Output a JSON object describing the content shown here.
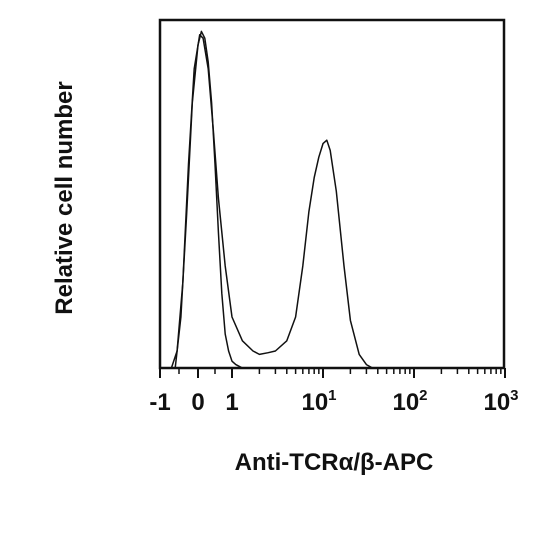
{
  "chart_data": {
    "type": "line",
    "title": "",
    "xlabel": "Anti-TCRα/β-APC",
    "ylabel": "Relative cell number",
    "x_scale": "biexponential (linear near 0, log above 1)",
    "xlim": [
      -1,
      1000
    ],
    "ylim": [
      0,
      1
    ],
    "grid": false,
    "legend": "none",
    "x_ticks": [
      {
        "value": -1,
        "base": "-1",
        "exp": ""
      },
      {
        "value": 0,
        "base": "0",
        "exp": ""
      },
      {
        "value": 1,
        "base": "1",
        "exp": ""
      },
      {
        "value": 10,
        "base": "10",
        "exp": "1"
      },
      {
        "value": 100,
        "base": "10",
        "exp": "2"
      },
      {
        "value": 1000,
        "base": "10",
        "exp": "3"
      }
    ],
    "series": [
      {
        "color": "#111111",
        "x": [
          -0.6,
          -0.45,
          -0.3,
          -0.15,
          0,
          0.1,
          0.2,
          0.3,
          0.4,
          0.5,
          0.6,
          0.7,
          0.8,
          0.9,
          1.0,
          1.1,
          1.3,
          1.6
        ],
        "y": [
          0.0,
          0.15,
          0.45,
          0.78,
          0.95,
          0.99,
          0.97,
          0.9,
          0.78,
          0.6,
          0.4,
          0.22,
          0.1,
          0.05,
          0.02,
          0.01,
          0.0,
          0.0
        ]
      },
      {
        "color": "#111111",
        "x": [
          -0.7,
          -0.55,
          -0.4,
          -0.25,
          -0.1,
          0.05,
          0.15,
          0.3,
          0.45,
          0.6,
          0.8,
          1.0,
          1.3,
          1.7,
          2,
          2.5,
          3,
          4,
          5,
          6,
          7,
          8,
          9,
          10,
          11,
          12,
          14,
          17,
          20,
          25,
          30,
          35
        ],
        "y": [
          0.0,
          0.05,
          0.25,
          0.6,
          0.88,
          0.98,
          0.97,
          0.88,
          0.7,
          0.5,
          0.3,
          0.15,
          0.08,
          0.05,
          0.04,
          0.045,
          0.05,
          0.08,
          0.15,
          0.3,
          0.46,
          0.56,
          0.62,
          0.66,
          0.67,
          0.64,
          0.52,
          0.3,
          0.14,
          0.04,
          0.01,
          0.0
        ]
      }
    ]
  }
}
